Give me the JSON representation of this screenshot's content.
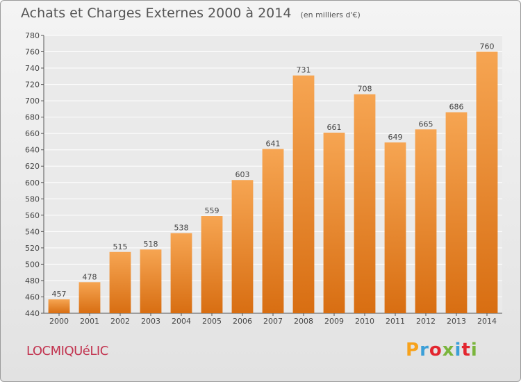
{
  "header": {
    "title": "Achats et Charges Externes 2000 à 2014",
    "subtitle": "(en milliers d'€)"
  },
  "footer": {
    "place": "LOCMIQUéLIC",
    "logo_text": "Proxiti",
    "logo_colors": [
      "#f7a21b",
      "#3b9fd8",
      "#e3262f",
      "#7ab53c",
      "#3b9fd8",
      "#e3262f",
      "#7ab53c"
    ]
  },
  "chart_data": {
    "type": "bar",
    "categories": [
      "2000",
      "2001",
      "2002",
      "2003",
      "2004",
      "2005",
      "2006",
      "2007",
      "2008",
      "2009",
      "2010",
      "2011",
      "2012",
      "2013",
      "2014"
    ],
    "values": [
      457,
      478,
      515,
      518,
      538,
      559,
      603,
      641,
      731,
      661,
      708,
      649,
      665,
      686,
      760
    ],
    "ylim": [
      440,
      780
    ],
    "yticks": [
      440,
      460,
      480,
      500,
      520,
      540,
      560,
      580,
      600,
      620,
      640,
      660,
      680,
      700,
      720,
      740,
      760,
      780
    ],
    "grid": true,
    "bar_color": "#f0922e"
  }
}
